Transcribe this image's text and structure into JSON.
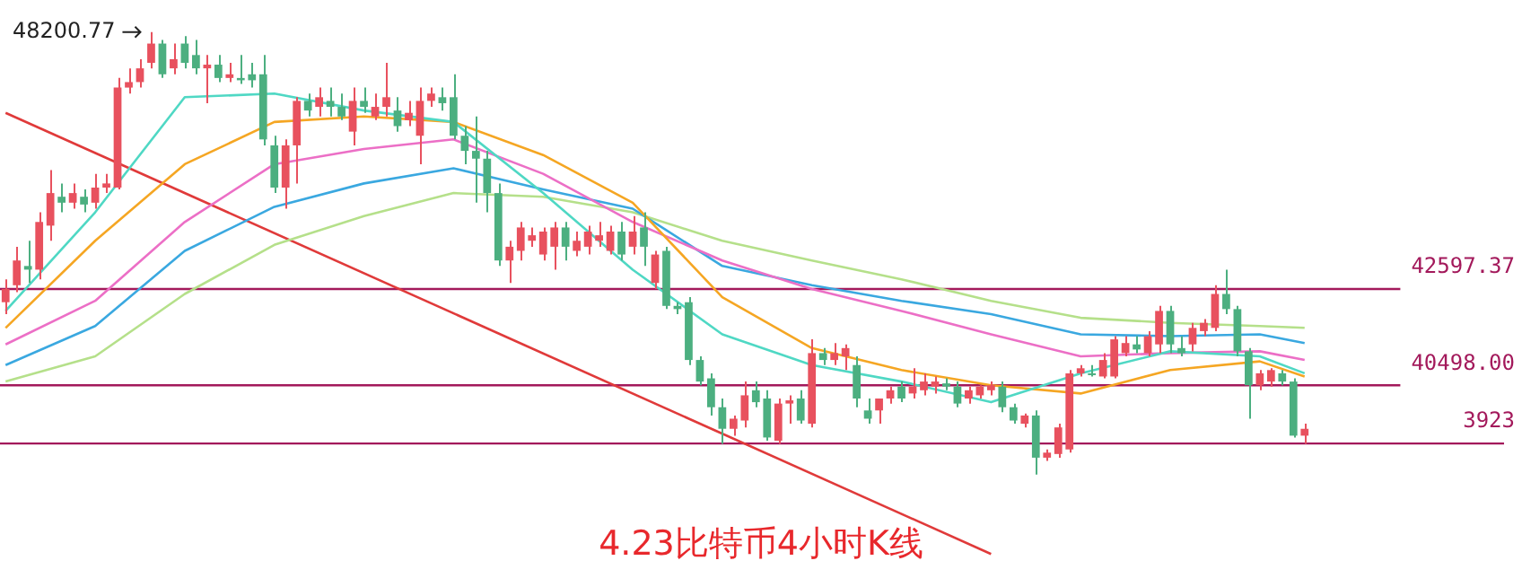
{
  "chart_data": {
    "type": "candlestick",
    "title": "4.23比特币4小时K线",
    "categories": [
      null,
      null,
      null,
      null,
      null,
      null,
      null,
      null,
      null,
      null,
      null,
      null,
      null,
      null,
      null,
      null,
      null,
      null,
      null,
      null,
      null,
      null,
      null,
      null,
      null,
      null,
      null,
      null,
      null,
      null,
      null,
      null,
      null,
      null,
      null,
      null,
      null,
      null,
      null,
      null,
      null,
      null,
      null,
      null,
      null,
      null,
      null,
      null,
      null,
      null,
      null,
      null,
      null,
      null,
      null,
      null,
      null,
      null,
      null,
      null,
      null,
      null,
      null,
      null,
      null,
      null,
      null,
      null,
      null,
      null,
      null,
      null,
      null,
      null,
      null,
      null,
      null,
      null,
      null,
      null,
      null,
      null,
      null,
      null,
      null,
      null,
      null,
      null,
      null,
      null,
      null,
      null,
      null,
      null,
      null,
      null,
      null,
      null,
      null,
      null,
      null,
      null,
      null,
      null,
      null,
      null,
      null,
      null,
      null,
      null,
      null,
      null,
      null,
      null,
      null,
      null,
      null
    ],
    "ohlc": [
      [
        42310,
        42810,
        42050,
        42600
      ],
      [
        42680,
        43520,
        42530,
        43220
      ],
      [
        43100,
        43650,
        42730,
        43020
      ],
      [
        43020,
        44270,
        42810,
        44060
      ],
      [
        43980,
        45190,
        43650,
        44690
      ],
      [
        44610,
        44900,
        44270,
        44480
      ],
      [
        44480,
        44900,
        44350,
        44690
      ],
      [
        44610,
        44770,
        44270,
        44440
      ],
      [
        44480,
        45110,
        44350,
        44810
      ],
      [
        44810,
        45110,
        44690,
        44900
      ],
      [
        44810,
        47200,
        44770,
        46990
      ],
      [
        46990,
        47410,
        46860,
        47110
      ],
      [
        47110,
        47610,
        46990,
        47410
      ],
      [
        47530,
        48200.77,
        47410,
        47950
      ],
      [
        47950,
        48030,
        47200,
        47280
      ],
      [
        47410,
        47950,
        47280,
        47610
      ],
      [
        47950,
        48110,
        47410,
        47530
      ],
      [
        47700,
        48030,
        47280,
        47410
      ],
      [
        47410,
        47700,
        46650,
        47490
      ],
      [
        47490,
        47700,
        47110,
        47200
      ],
      [
        47200,
        47530,
        47110,
        47280
      ],
      [
        47200,
        47700,
        47070,
        47150
      ],
      [
        47280,
        47530,
        46990,
        47150
      ],
      [
        47280,
        47700,
        45730,
        45860
      ],
      [
        45730,
        45940,
        44690,
        44810
      ],
      [
        44810,
        45860,
        44350,
        45730
      ],
      [
        45730,
        46780,
        44900,
        46700
      ],
      [
        46700,
        46860,
        46360,
        46490
      ],
      [
        46570,
        46990,
        46360,
        46780
      ],
      [
        46700,
        46990,
        46360,
        46570
      ],
      [
        46570,
        46860,
        46280,
        46360
      ],
      [
        46030,
        46990,
        45730,
        46700
      ],
      [
        46700,
        46990,
        46440,
        46570
      ],
      [
        46360,
        46860,
        46280,
        46570
      ],
      [
        46570,
        47530,
        46360,
        46780
      ],
      [
        46490,
        46780,
        46030,
        46150
      ],
      [
        46280,
        46700,
        46150,
        46440
      ],
      [
        45940,
        46990,
        45320,
        46700
      ],
      [
        46700,
        46990,
        46570,
        46860
      ],
      [
        46780,
        46990,
        46490,
        46650
      ],
      [
        46780,
        47280,
        45860,
        45940
      ],
      [
        45940,
        46150,
        45320,
        45610
      ],
      [
        45610,
        46360,
        44480,
        45440
      ],
      [
        45440,
        45610,
        44270,
        44690
      ],
      [
        44690,
        44900,
        43100,
        43220
      ],
      [
        43220,
        43650,
        42730,
        43520
      ],
      [
        43430,
        44060,
        43220,
        43940
      ],
      [
        43650,
        43940,
        43520,
        43770
      ],
      [
        43350,
        43940,
        43220,
        43850
      ],
      [
        43520,
        44060,
        43020,
        43940
      ],
      [
        43940,
        44060,
        43220,
        43520
      ],
      [
        43430,
        43850,
        43310,
        43650
      ],
      [
        43520,
        43980,
        43350,
        43850
      ],
      [
        43650,
        44060,
        43520,
        43770
      ],
      [
        43430,
        43980,
        43350,
        43850
      ],
      [
        43850,
        44060,
        43220,
        43350
      ],
      [
        43520,
        44190,
        43350,
        43850
      ],
      [
        43940,
        44270,
        43100,
        43520
      ],
      [
        42730,
        43430,
        42600,
        43350
      ],
      [
        43430,
        43520,
        42160,
        42230
      ],
      [
        42230,
        42310,
        42050,
        42160
      ],
      [
        42310,
        42420,
        40940,
        41050
      ],
      [
        41050,
        41130,
        40500,
        40580
      ],
      [
        40650,
        40760,
        39840,
        40020
      ],
      [
        40020,
        40210,
        39220,
        39550
      ],
      [
        39550,
        39840,
        39400,
        39770
      ],
      [
        39730,
        40580,
        39580,
        40280
      ],
      [
        40390,
        40580,
        40020,
        40130
      ],
      [
        40210,
        40390,
        39290,
        39360
      ],
      [
        39290,
        40210,
        39220,
        40100
      ],
      [
        40100,
        40280,
        39660,
        40170
      ],
      [
        40210,
        40390,
        39660,
        39730
      ],
      [
        39660,
        41500,
        39580,
        41200
      ],
      [
        41200,
        41310,
        40940,
        41050
      ],
      [
        41050,
        41420,
        40940,
        41200
      ],
      [
        41130,
        41390,
        40830,
        41310
      ],
      [
        40940,
        41130,
        40020,
        40210
      ],
      [
        39950,
        40210,
        39660,
        39770
      ],
      [
        39950,
        40210,
        39660,
        40210
      ],
      [
        40210,
        40470,
        40100,
        40390
      ],
      [
        40470,
        40580,
        40130,
        40210
      ],
      [
        40320,
        40870,
        40210,
        40470
      ],
      [
        40390,
        40760,
        40280,
        40580
      ],
      [
        40470,
        40690,
        40320,
        40580
      ],
      [
        40540,
        40650,
        40390,
        40470
      ],
      [
        40470,
        40580,
        40020,
        40100
      ],
      [
        40210,
        40470,
        40100,
        40390
      ],
      [
        40280,
        40500,
        40210,
        40470
      ],
      [
        40390,
        40580,
        40280,
        40500
      ],
      [
        40470,
        40580,
        39910,
        40020
      ],
      [
        40020,
        40100,
        39660,
        39730
      ],
      [
        39660,
        39880,
        39580,
        39840
      ],
      [
        39840,
        39950,
        38550,
        38920
      ],
      [
        38920,
        39100,
        38850,
        39030
      ],
      [
        39000,
        39660,
        38920,
        39580
      ],
      [
        39100,
        40830,
        39030,
        40760
      ],
      [
        40760,
        40940,
        40690,
        40870
      ],
      [
        40760,
        40940,
        40690,
        40720
      ],
      [
        40690,
        41200,
        40650,
        41050
      ],
      [
        40690,
        41570,
        40650,
        41500
      ],
      [
        41200,
        41570,
        41130,
        41420
      ],
      [
        41390,
        41570,
        41200,
        41280
      ],
      [
        41200,
        41680,
        41130,
        41570
      ],
      [
        41390,
        42230,
        41200,
        42120
      ],
      [
        42120,
        42230,
        41200,
        41390
      ],
      [
        41310,
        41570,
        41130,
        41200
      ],
      [
        41390,
        41860,
        41240,
        41750
      ],
      [
        41680,
        41940,
        41570,
        41860
      ],
      [
        41750,
        42680,
        41680,
        42490
      ],
      [
        42490,
        43020,
        42050,
        42160
      ],
      [
        42160,
        42230,
        41130,
        41240
      ],
      [
        41240,
        41310,
        39770,
        40500
      ],
      [
        40500,
        40830,
        40390,
        40760
      ],
      [
        40580,
        40870,
        40470,
        40830
      ],
      [
        40760,
        40830,
        40500,
        40580
      ],
      [
        40580,
        40650,
        39360,
        39400
      ],
      [
        39400,
        39660,
        39220,
        39550
      ]
    ],
    "colors": [
      "#e8515e",
      "#e8515e",
      "#4caf80",
      "#e8515e",
      "#e8515e",
      "#4caf80",
      "#e8515e",
      "#4caf80",
      "#e8515e",
      "#e8515e",
      "#e8515e",
      "#e8515e",
      "#e8515e",
      "#e8515e",
      "#4caf80",
      "#e8515e",
      "#4caf80",
      "#4caf80",
      "#e8515e",
      "#4caf80",
      "#e8515e",
      "#4caf80",
      "#4caf80",
      "#4caf80",
      "#4caf80",
      "#e8515e",
      "#e8515e",
      "#4caf80",
      "#e8515e",
      "#4caf80",
      "#4caf80",
      "#e8515e",
      "#4caf80",
      "#e8515e",
      "#e8515e",
      "#4caf80",
      "#e8515e",
      "#e8515e",
      "#e8515e",
      "#4caf80",
      "#4caf80",
      "#4caf80",
      "#4caf80",
      "#4caf80",
      "#4caf80",
      "#e8515e",
      "#e8515e",
      "#e8515e",
      "#e8515e",
      "#e8515e",
      "#4caf80",
      "#e8515e",
      "#e8515e",
      "#e8515e",
      "#e8515e",
      "#4caf80",
      "#e8515e",
      "#4caf80",
      "#e8515e",
      "#4caf80",
      "#4caf80",
      "#4caf80",
      "#4caf80",
      "#4caf80",
      "#4caf80",
      "#e8515e",
      "#e8515e",
      "#4caf80",
      "#4caf80",
      "#e8515e",
      "#e8515e",
      "#4caf80",
      "#e8515e",
      "#4caf80",
      "#e8515e",
      "#e8515e",
      "#4caf80",
      "#4caf80",
      "#e8515e",
      "#e8515e",
      "#4caf80",
      "#e8515e",
      "#e8515e",
      "#e8515e",
      "#4caf80",
      "#4caf80",
      "#e8515e",
      "#e8515e",
      "#e8515e",
      "#4caf80",
      "#4caf80",
      "#e8515e",
      "#4caf80",
      "#e8515e",
      "#e8515e",
      "#e8515e",
      "#e8515e",
      "#4caf80",
      "#e8515e",
      "#e8515e",
      "#e8515e",
      "#4caf80",
      "#e8515e",
      "#e8515e",
      "#4caf80",
      "#4caf80",
      "#e8515e",
      "#e8515e",
      "#e8515e",
      "#4caf80",
      "#4caf80",
      "#4caf80",
      "#e8515e",
      "#e8515e",
      "#4caf80",
      "#4caf80",
      "#e8515e"
    ],
    "ylim": [
      36100,
      48900
    ],
    "tick_labels": false,
    "series": [
      {
        "type": "line",
        "color": "#4fd8c4",
        "values": [
          42120,
          null,
          null,
          null,
          null,
          null,
          null,
          null,
          44270,
          null,
          null,
          null,
          null,
          null,
          null,
          null,
          46780,
          null,
          null,
          null,
          null,
          null,
          null,
          null,
          46860,
          null,
          null,
          null,
          null,
          null,
          null,
          null,
          46490,
          null,
          null,
          null,
          null,
          null,
          null,
          null,
          46240,
          null,
          null,
          null,
          null,
          null,
          null,
          null,
          44690,
          null,
          null,
          null,
          null,
          null,
          null,
          null,
          43020,
          null,
          null,
          null,
          null,
          null,
          null,
          null,
          41610,
          null,
          null,
          null,
          null,
          null,
          null,
          null,
          40940,
          null,
          null,
          null,
          null,
          null,
          null,
          null,
          40580,
          null,
          null,
          null,
          null,
          null,
          null,
          null,
          40130,
          null,
          null,
          null,
          null,
          null,
          null,
          null,
          40760,
          null,
          null,
          null,
          null,
          null,
          null,
          null,
          41240,
          null,
          null,
          null,
          null,
          null,
          null,
          null,
          41130,
          null,
          null,
          null,
          40760
        ]
      },
      {
        "type": "line",
        "color": "#f5a623",
        "values": [
          41750,
          null,
          null,
          null,
          null,
          null,
          null,
          null,
          43650,
          null,
          null,
          null,
          null,
          null,
          null,
          null,
          45320,
          null,
          null,
          null,
          null,
          null,
          null,
          null,
          46240,
          null,
          null,
          null,
          null,
          null,
          null,
          null,
          46360,
          null,
          null,
          null,
          null,
          null,
          null,
          null,
          46240,
          null,
          null,
          null,
          null,
          null,
          null,
          null,
          45520,
          null,
          null,
          null,
          null,
          null,
          null,
          null,
          44480,
          null,
          null,
          null,
          null,
          null,
          null,
          null,
          42420,
          null,
          null,
          null,
          null,
          null,
          null,
          null,
          41310,
          null,
          null,
          null,
          null,
          null,
          null,
          null,
          40830,
          null,
          null,
          null,
          null,
          null,
          null,
          null,
          40500,
          null,
          null,
          null,
          null,
          null,
          null,
          null,
          40320,
          null,
          null,
          null,
          null,
          null,
          null,
          null,
          40830,
          null,
          null,
          null,
          null,
          null,
          null,
          null,
          41020,
          null,
          null,
          null,
          40690
        ]
      },
      {
        "type": "line",
        "color": "#ec6fc6",
        "values": [
          41390,
          null,
          null,
          null,
          null,
          null,
          null,
          null,
          42340,
          null,
          null,
          null,
          null,
          null,
          null,
          null,
          44060,
          null,
          null,
          null,
          null,
          null,
          null,
          null,
          45320,
          null,
          null,
          null,
          null,
          null,
          null,
          null,
          45650,
          null,
          null,
          null,
          null,
          null,
          null,
          null,
          45860,
          null,
          null,
          null,
          null,
          null,
          null,
          null,
          45110,
          null,
          null,
          null,
          null,
          null,
          null,
          null,
          44060,
          null,
          null,
          null,
          null,
          null,
          null,
          null,
          43220,
          null,
          null,
          null,
          null,
          null,
          null,
          null,
          42600,
          null,
          null,
          null,
          null,
          null,
          null,
          null,
          42120,
          null,
          null,
          null,
          null,
          null,
          null,
          null,
          41610,
          null,
          null,
          null,
          null,
          null,
          null,
          null,
          41130,
          null,
          null,
          null,
          null,
          null,
          null,
          null,
          41200,
          null,
          null,
          null,
          null,
          null,
          null,
          null,
          41240,
          null,
          null,
          null,
          41050
        ]
      },
      {
        "type": "line",
        "color": "#3aa8e0",
        "values": [
          40940,
          null,
          null,
          null,
          null,
          null,
          null,
          null,
          41790,
          null,
          null,
          null,
          null,
          null,
          null,
          null,
          43430,
          null,
          null,
          null,
          null,
          null,
          null,
          null,
          44390,
          null,
          null,
          null,
          null,
          null,
          null,
          null,
          44900,
          null,
          null,
          null,
          null,
          null,
          null,
          null,
          45230,
          null,
          null,
          null,
          null,
          null,
          null,
          null,
          44770,
          null,
          null,
          null,
          null,
          null,
          null,
          null,
          44350,
          null,
          null,
          null,
          null,
          null,
          null,
          null,
          43100,
          null,
          null,
          null,
          null,
          null,
          null,
          null,
          42680,
          null,
          null,
          null,
          null,
          null,
          null,
          null,
          42340,
          null,
          null,
          null,
          null,
          null,
          null,
          null,
          42050,
          null,
          null,
          null,
          null,
          null,
          null,
          null,
          41610,
          null,
          null,
          null,
          null,
          null,
          null,
          null,
          41570,
          null,
          null,
          null,
          null,
          null,
          null,
          null,
          41610,
          null,
          null,
          null,
          41420
        ]
      },
      {
        "type": "line",
        "color": "#b5e08a",
        "values": [
          40580,
          null,
          null,
          null,
          null,
          null,
          null,
          null,
          41130,
          null,
          null,
          null,
          null,
          null,
          null,
          null,
          42490,
          null,
          null,
          null,
          null,
          null,
          null,
          null,
          43560,
          null,
          null,
          null,
          null,
          null,
          null,
          null,
          44190,
          null,
          null,
          null,
          null,
          null,
          null,
          null,
          44690,
          null,
          null,
          null,
          null,
          null,
          null,
          null,
          44610,
          null,
          null,
          null,
          null,
          null,
          null,
          null,
          44270,
          null,
          null,
          null,
          null,
          null,
          null,
          null,
          43650,
          null,
          null,
          null,
          null,
          null,
          null,
          null,
          43220,
          null,
          null,
          null,
          null,
          null,
          null,
          null,
          42810,
          null,
          null,
          null,
          null,
          null,
          null,
          null,
          42340,
          null,
          null,
          null,
          null,
          null,
          null,
          null,
          41970,
          null,
          null,
          null,
          null,
          null,
          null,
          null,
          41860,
          null,
          null,
          null,
          null,
          null,
          null,
          null,
          41790,
          null,
          null,
          null,
          41750
        ]
      },
      {
        "type": "line",
        "color": "#e03a3a",
        "values": [
          46440,
          null,
          null,
          null,
          null,
          null,
          null,
          null,
          null,
          null,
          null,
          null,
          null,
          null,
          null,
          null,
          null,
          null,
          null,
          null,
          null,
          null,
          null,
          null,
          null,
          null,
          null,
          null,
          null,
          null,
          null,
          null,
          null,
          null,
          null,
          null,
          null,
          null,
          null,
          null,
          null,
          null,
          null,
          null,
          null,
          null,
          null,
          null,
          null,
          null,
          null,
          null,
          null,
          null,
          null,
          null,
          null,
          null,
          null,
          null,
          null,
          null,
          null,
          null,
          null,
          null,
          null,
          null,
          null,
          null,
          null,
          null,
          null,
          null,
          null,
          null,
          null,
          null,
          null,
          null,
          null,
          null,
          null,
          null,
          null,
          null,
          null,
          null,
          36820,
          null,
          null,
          null,
          null,
          null,
          null,
          null,
          null,
          null,
          null,
          null,
          null,
          null,
          null,
          null,
          null,
          null,
          null,
          null,
          null,
          null,
          null,
          null,
          null,
          null,
          null,
          null,
          null
        ]
      }
    ],
    "ref_lines": [
      {
        "axis": "y",
        "value": 42597.37,
        "label": "42597.37",
        "color": "#a3195b"
      },
      {
        "axis": "y",
        "value": 40498.0,
        "label": "40498.00",
        "color": "#a3195b"
      },
      {
        "axis": "y",
        "value": 39230,
        "color": "#a3195b"
      }
    ],
    "annotations": [
      "48200.77",
      "3923"
    ]
  }
}
